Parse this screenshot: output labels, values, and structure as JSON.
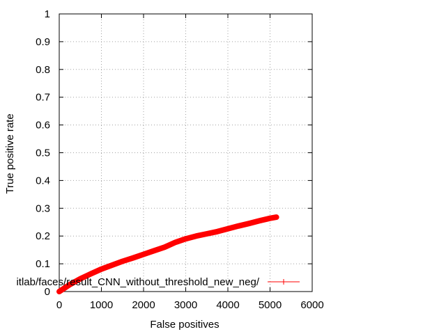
{
  "chart_data": {
    "type": "line",
    "title": "",
    "xlabel": "False positives",
    "ylabel": "True positive rate",
    "xlim": [
      0,
      6000
    ],
    "ylim": [
      0,
      1
    ],
    "grid": true,
    "legend_position": "bottom-right",
    "x_ticks": [
      "0",
      "1000",
      "2000",
      "3000",
      "4000",
      "5000",
      "6000"
    ],
    "y_ticks": [
      "0",
      "0.1",
      "0.2",
      "0.3",
      "0.4",
      "0.5",
      "0.6",
      "0.7",
      "0.8",
      "0.9",
      "1"
    ],
    "series": [
      {
        "name": "itlab/faces/result_CNN_without_threshold_new_neg/",
        "color": "#ff0000",
        "x": [
          0,
          250,
          500,
          750,
          1000,
          1250,
          1500,
          1750,
          2000,
          2250,
          2500,
          2750,
          3000,
          3250,
          3500,
          3750,
          4000,
          4250,
          4500,
          4750,
          5000,
          5150
        ],
        "y": [
          0.0,
          0.025,
          0.046,
          0.064,
          0.081,
          0.095,
          0.109,
          0.121,
          0.134,
          0.147,
          0.16,
          0.177,
          0.19,
          0.2,
          0.208,
          0.216,
          0.226,
          0.236,
          0.245,
          0.255,
          0.264,
          0.268
        ]
      }
    ]
  }
}
